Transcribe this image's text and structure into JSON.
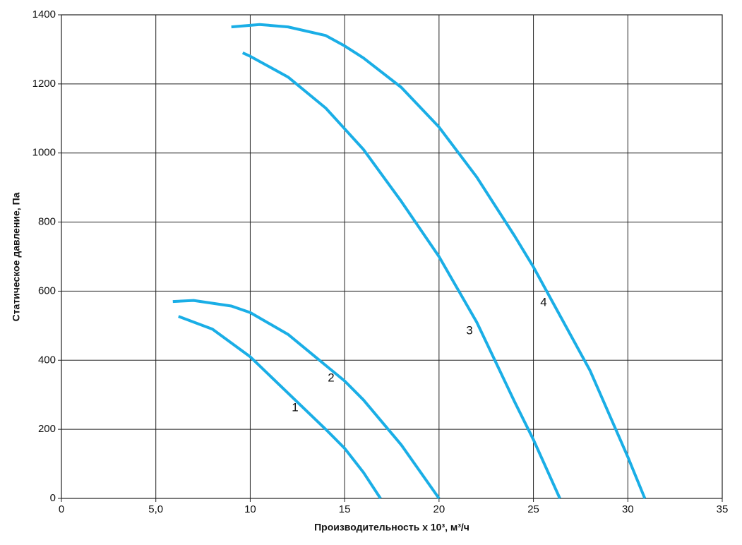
{
  "chart_data": {
    "type": "line",
    "xlabel": "Производительность х 10³, м³/ч",
    "ylabel": "Статическое давление, Па",
    "xlim": [
      0,
      35
    ],
    "ylim": [
      0,
      1400
    ],
    "xticks": [
      0,
      {
        "value": 5,
        "label": "5,0"
      },
      10,
      15,
      20,
      25,
      30,
      35
    ],
    "yticks": [
      0,
      200,
      400,
      600,
      800,
      1000,
      1200,
      1400
    ],
    "grid": true,
    "series": [
      {
        "name": "1",
        "color": "#1aaee6",
        "x": [
          6.2,
          8,
          10,
          12,
          14,
          15,
          16,
          16.9
        ],
        "values": [
          527,
          490,
          410,
          305,
          200,
          145,
          75,
          0
        ]
      },
      {
        "name": "2",
        "color": "#1aaee6",
        "x": [
          5.9,
          7,
          9,
          10,
          12,
          14,
          15,
          16,
          18,
          20
        ],
        "values": [
          570,
          573,
          557,
          538,
          475,
          385,
          340,
          285,
          155,
          0
        ]
      },
      {
        "name": "3",
        "color": "#1aaee6",
        "x": [
          9.6,
          10,
          12,
          14,
          15,
          16,
          18,
          20,
          22,
          24,
          25,
          26.4
        ],
        "values": [
          1290,
          1280,
          1220,
          1130,
          1070,
          1010,
          860,
          700,
          510,
          280,
          170,
          0
        ]
      },
      {
        "name": "4",
        "color": "#1aaee6",
        "x": [
          9,
          10.5,
          12,
          14,
          15,
          16,
          18,
          20,
          22,
          24,
          25,
          26,
          28,
          30,
          30.9
        ],
        "values": [
          1365,
          1372,
          1365,
          1340,
          1310,
          1275,
          1190,
          1075,
          930,
          760,
          670,
          570,
          370,
          120,
          0
        ]
      }
    ]
  }
}
